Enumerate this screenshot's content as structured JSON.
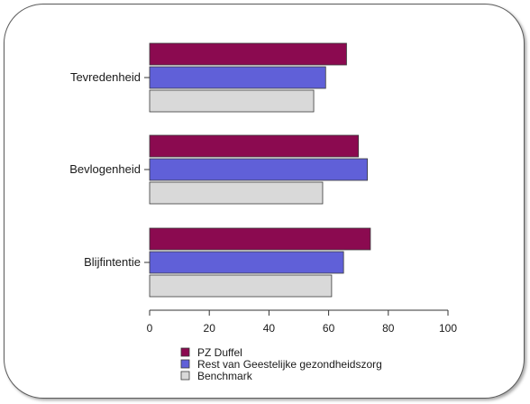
{
  "chart_data": {
    "type": "bar",
    "orientation": "horizontal",
    "categories": [
      "Tevredenheid",
      "Bevlogenheid",
      "Blijfintentie"
    ],
    "series": [
      {
        "name": "PZ Duffel",
        "color": "#8b0a50",
        "values": [
          66,
          70,
          74
        ]
      },
      {
        "name": "Rest van Geestelijke gezondheidszorg",
        "color": "#6060d8",
        "values": [
          59,
          73,
          65
        ]
      },
      {
        "name": "Benchmark",
        "color": "#d9d9d9",
        "values": [
          55,
          58,
          61
        ]
      }
    ],
    "xlim": [
      0,
      100
    ],
    "xticks": [
      0,
      20,
      40,
      60,
      80,
      100
    ],
    "grid": false,
    "legend_position": "bottom-left"
  }
}
